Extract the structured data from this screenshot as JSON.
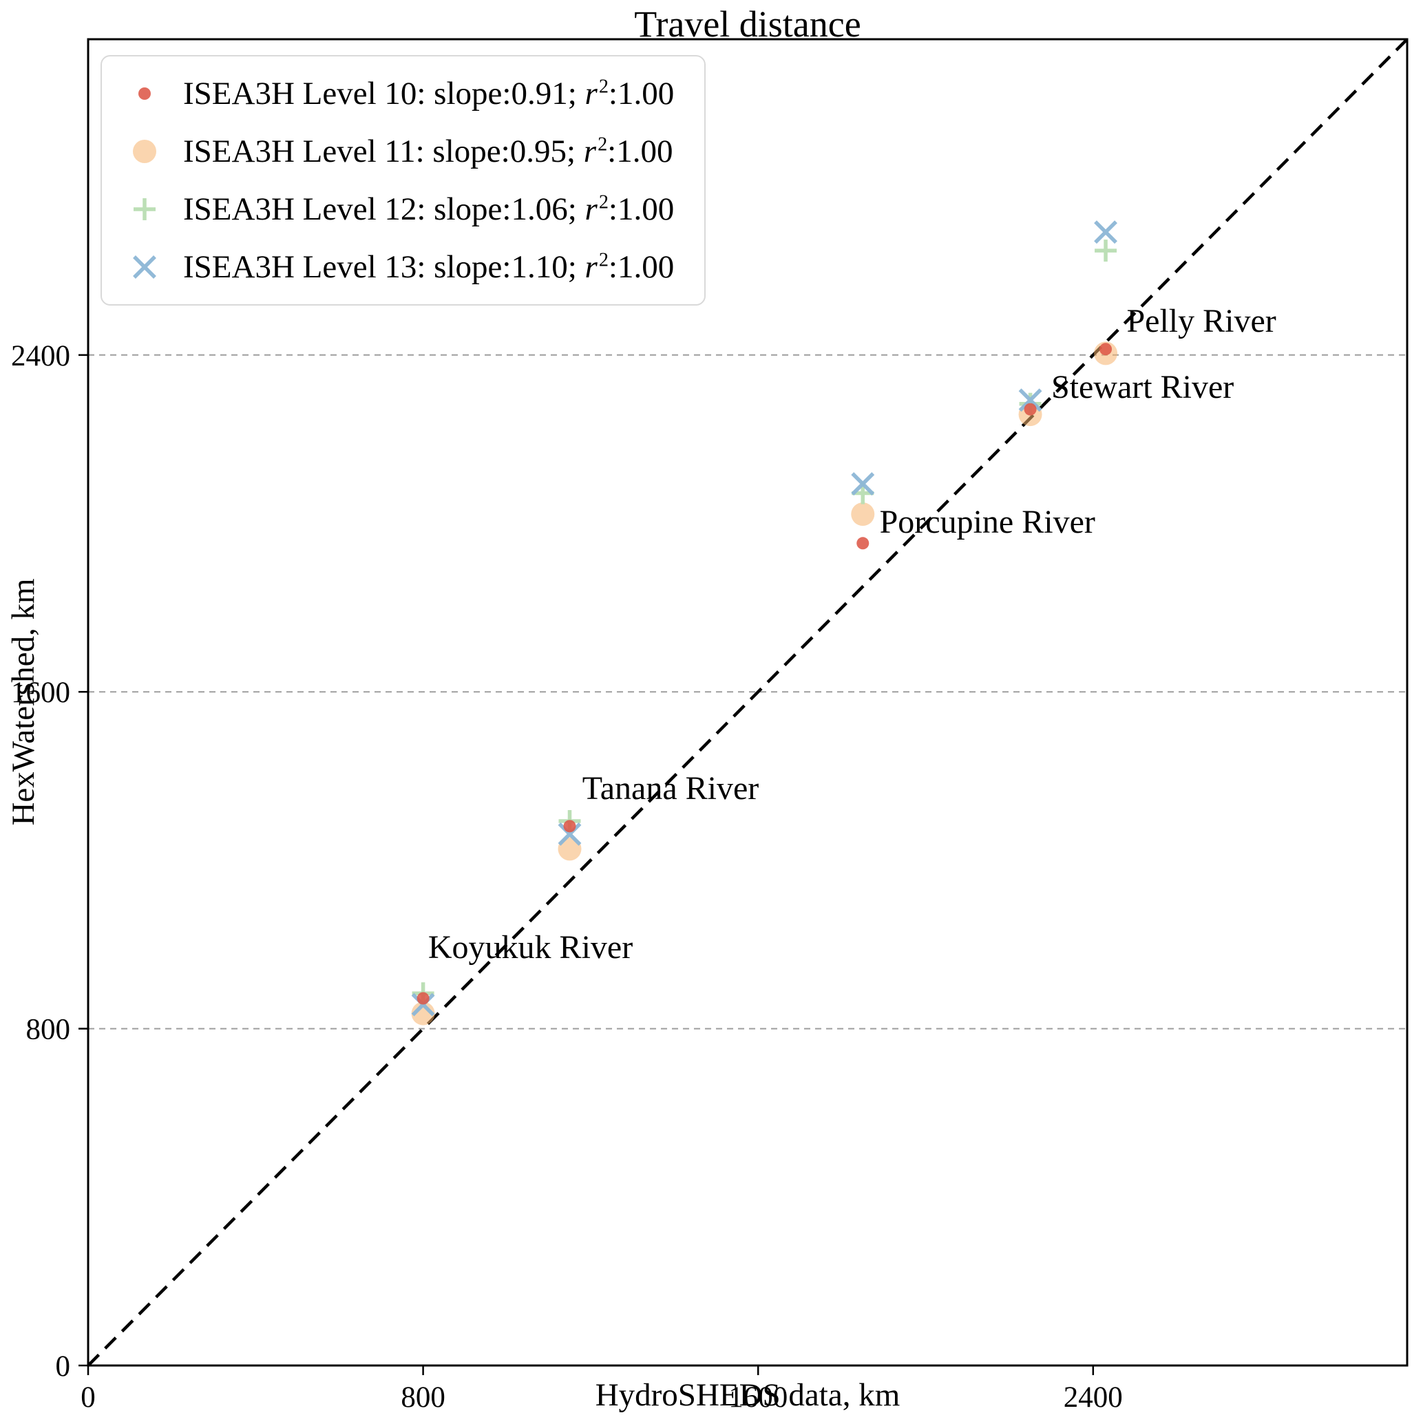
{
  "chart_data": {
    "type": "scatter",
    "title": "Travel distance",
    "xlabel": "HydroSHEDS data, km",
    "ylabel": "HexWatershed, km",
    "xlim": [
      0,
      3150
    ],
    "ylim": [
      0,
      3150
    ],
    "xticks": [
      0,
      800,
      1600,
      2400
    ],
    "yticks": [
      0,
      800,
      1600,
      2400
    ],
    "gridlines_y": [
      800,
      1600,
      2400
    ],
    "grid_on": true,
    "grid_color": "#9e9e9e",
    "axis_color": "#000000",
    "legend_position": "upper-left",
    "identity_line": {
      "show": true,
      "from": [
        0,
        0
      ],
      "to": [
        3150,
        3150
      ],
      "style": "dashed",
      "color": "#000000"
    },
    "legend_format": {
      "slope_label": ": slope:",
      "separator": "; ",
      "r_symbol": "r",
      "r_exponent": "2",
      "colon": ":"
    },
    "series": [
      {
        "name": "ISEA3H Level 10",
        "slope": "0.91",
        "r2": "1.00",
        "marker": "circle",
        "marker_radius": 9,
        "color": "#dd5848",
        "opacity": 0.88,
        "points": [
          {
            "river": "Koyukuk River",
            "x": 800,
            "y": 872
          },
          {
            "river": "Tanana River",
            "x": 1150,
            "y": 1281
          },
          {
            "river": "Porcupine River",
            "x": 1850,
            "y": 1953
          },
          {
            "river": "Stewart River",
            "x": 2250,
            "y": 2271
          },
          {
            "river": "Pelly River",
            "x": 2430,
            "y": 2414
          }
        ]
      },
      {
        "name": "ISEA3H Level 11",
        "slope": "0.95",
        "r2": "1.00",
        "marker": "circle",
        "marker_radius": 17,
        "color": "#f6b26e",
        "opacity": 0.55,
        "points": [
          {
            "river": "Koyukuk River",
            "x": 800,
            "y": 836
          },
          {
            "river": "Tanana River",
            "x": 1150,
            "y": 1227
          },
          {
            "river": "Porcupine River",
            "x": 1850,
            "y": 2022
          },
          {
            "river": "Stewart River",
            "x": 2250,
            "y": 2259
          },
          {
            "river": "Pelly River",
            "x": 2430,
            "y": 2404
          }
        ]
      },
      {
        "name": "ISEA3H Level 12",
        "slope": "1.06",
        "r2": "1.00",
        "marker": "plus",
        "marker_radius": 16,
        "color": "#b8ddb2",
        "opacity": 0.95,
        "points": [
          {
            "river": "Koyukuk River",
            "x": 800,
            "y": 884
          },
          {
            "river": "Tanana River",
            "x": 1150,
            "y": 1293
          },
          {
            "river": "Porcupine River",
            "x": 1850,
            "y": 2072
          },
          {
            "river": "Stewart River",
            "x": 2250,
            "y": 2284
          },
          {
            "river": "Pelly River",
            "x": 2430,
            "y": 2648
          }
        ]
      },
      {
        "name": "ISEA3H Level 13",
        "slope": "1.10",
        "r2": "1.00",
        "marker": "x",
        "marker_radius": 15,
        "color": "#8cb6d6",
        "opacity": 0.95,
        "points": [
          {
            "river": "Koyukuk River",
            "x": 800,
            "y": 857
          },
          {
            "river": "Tanana River",
            "x": 1150,
            "y": 1262
          },
          {
            "river": "Porcupine River",
            "x": 1850,
            "y": 2094
          },
          {
            "river": "Stewart River",
            "x": 2250,
            "y": 2293
          },
          {
            "river": "Pelly River",
            "x": 2430,
            "y": 2692
          }
        ]
      }
    ],
    "annotations": [
      {
        "text": "Koyukuk River",
        "x": 812,
        "y": 968
      },
      {
        "text": "Tanana River",
        "x": 1180,
        "y": 1345
      },
      {
        "text": "Porcupine River",
        "x": 1890,
        "y": 1978
      },
      {
        "text": "Stewart River",
        "x": 2300,
        "y": 2298
      },
      {
        "text": "Pelly River",
        "x": 2480,
        "y": 2455
      }
    ]
  }
}
